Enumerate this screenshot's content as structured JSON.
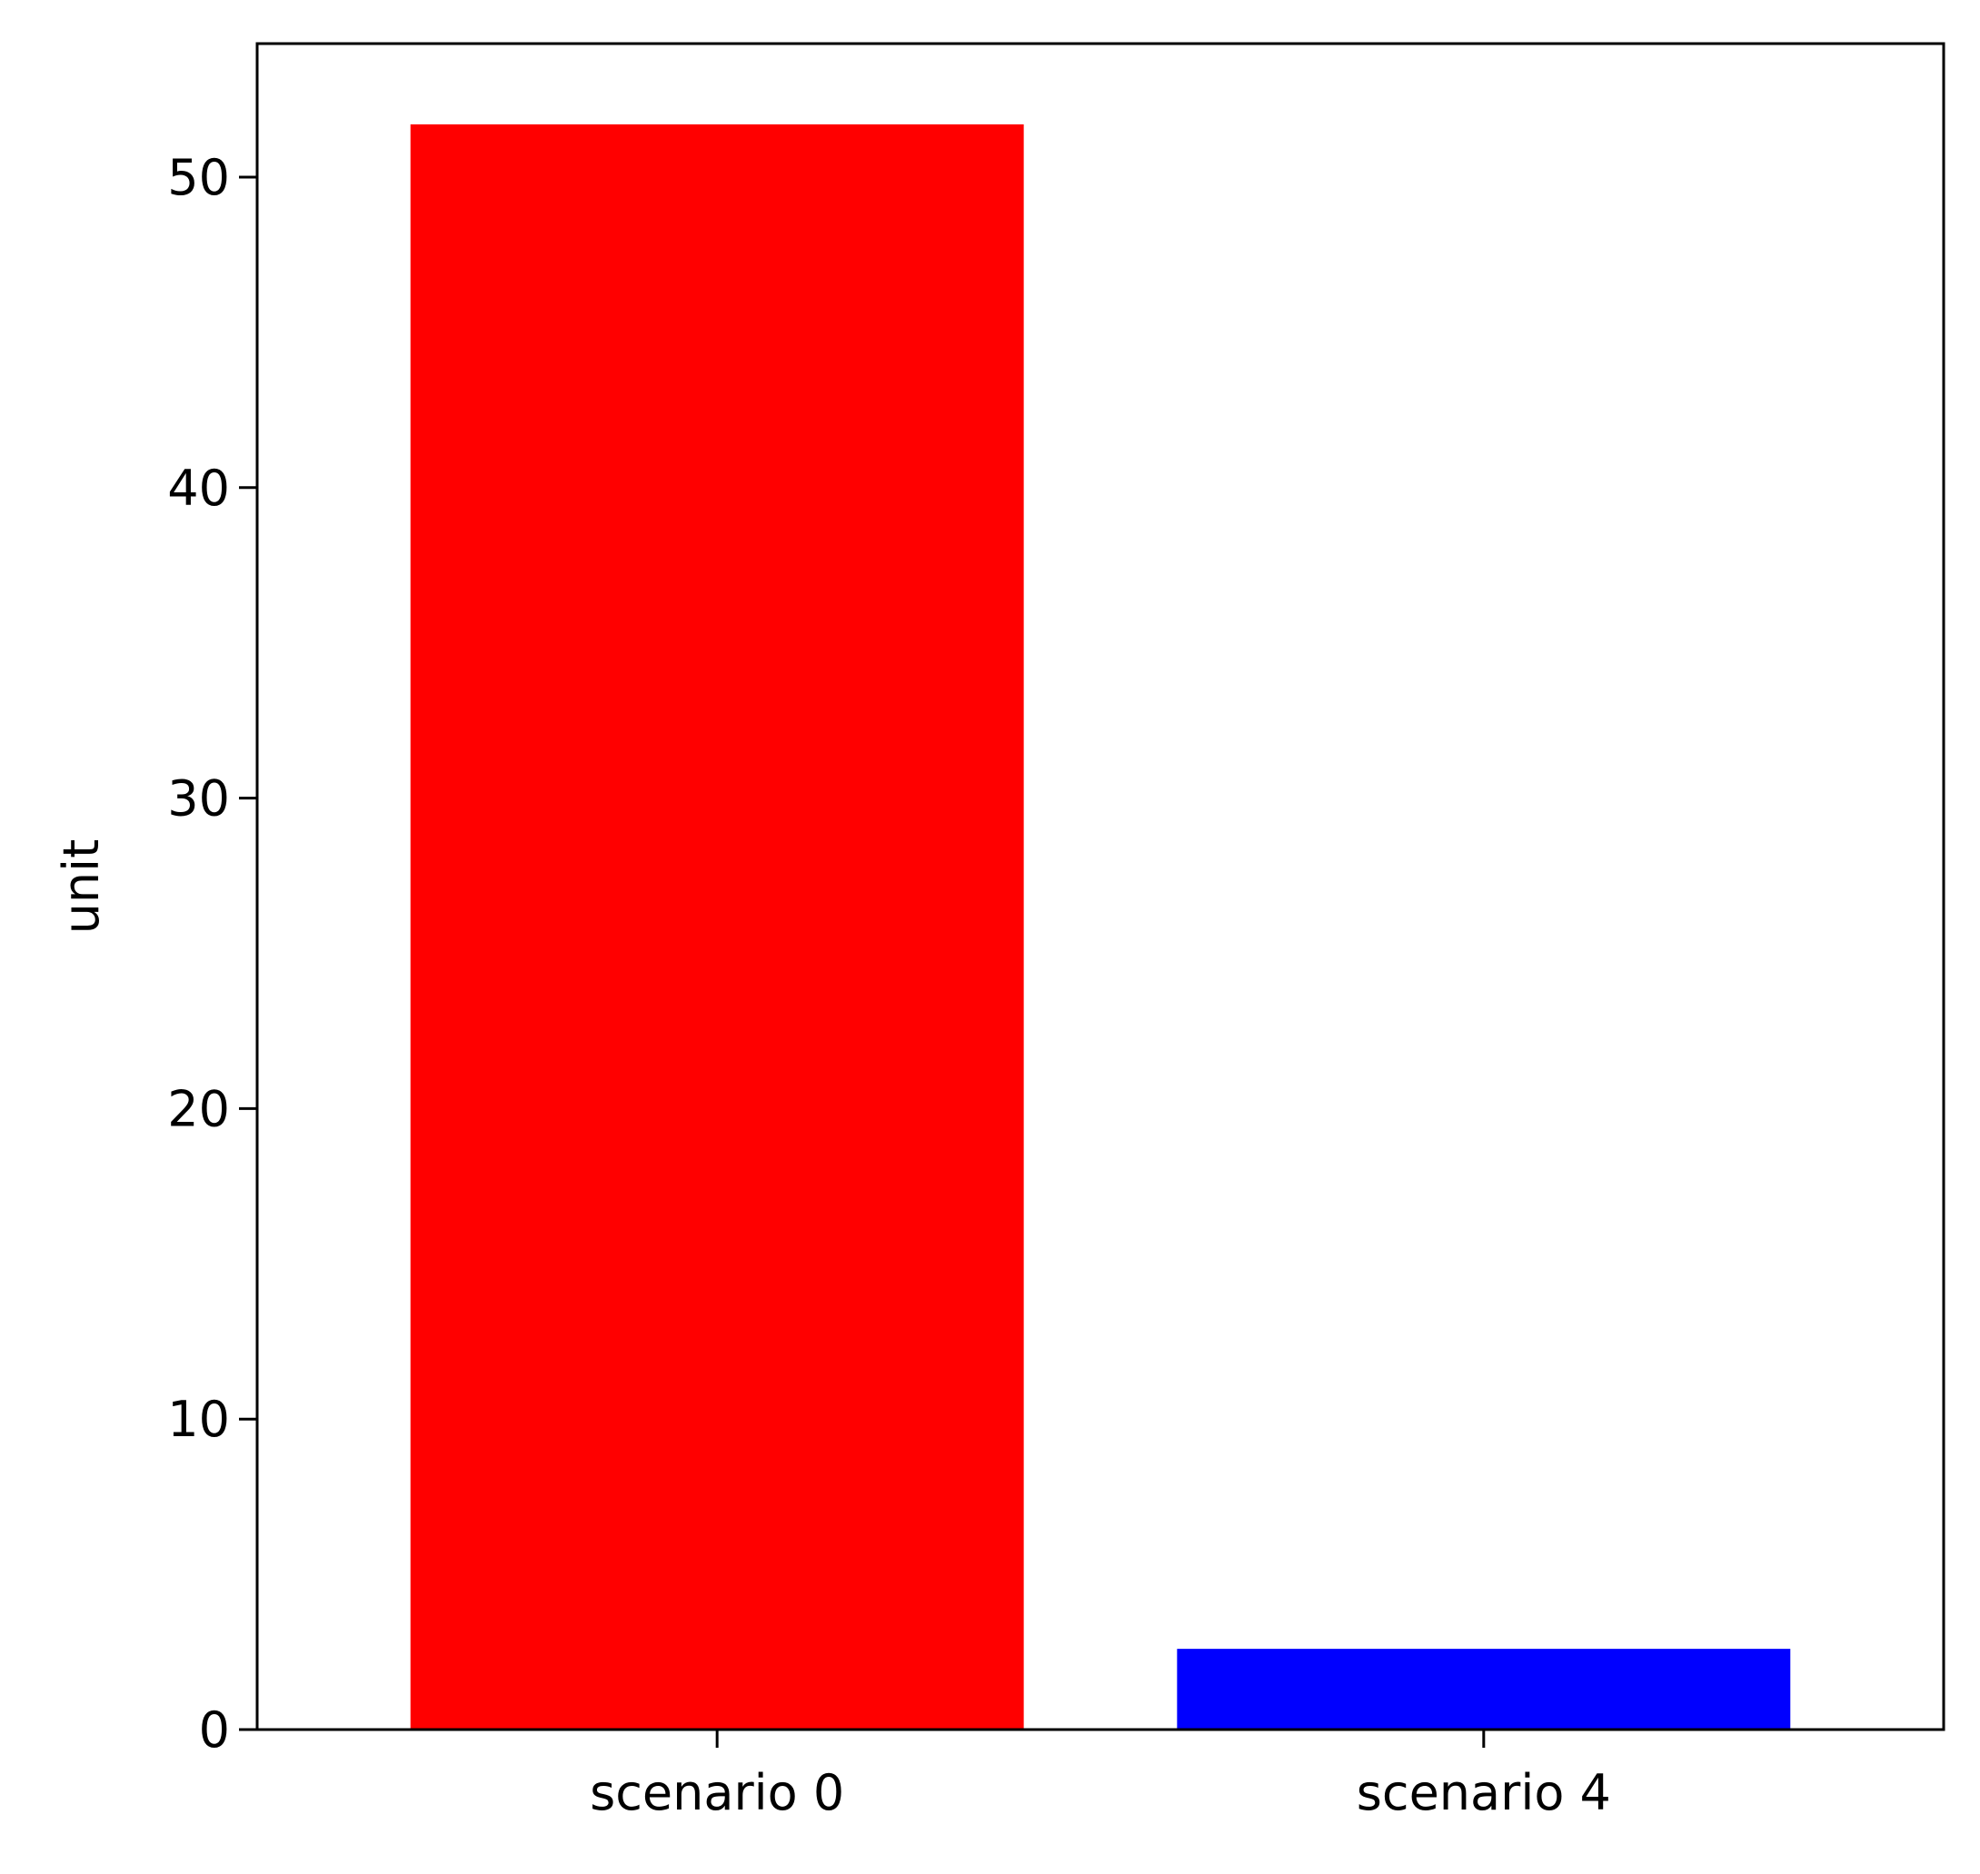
{
  "chart_data": {
    "type": "bar",
    "categories": [
      "scenario 0",
      "scenario 4"
    ],
    "values": [
      51.7,
      2.6
    ],
    "colors": [
      "#ff0000",
      "#0000ff"
    ],
    "title": "",
    "xlabel": "",
    "ylabel": "unit",
    "ylim": [
      0,
      54.3
    ],
    "yticks": [
      0,
      10,
      20,
      30,
      40,
      50
    ],
    "grid": false,
    "legend": "none"
  }
}
